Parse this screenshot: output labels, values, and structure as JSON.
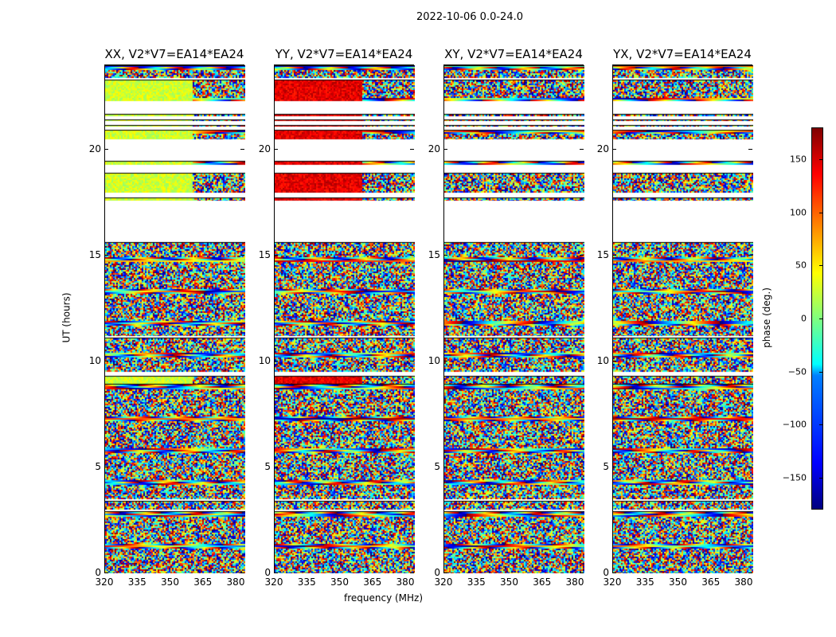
{
  "chart_data": {
    "type": "heatmap",
    "title": "2022-10-06 0.0-24.0",
    "xlabel": "frequency (MHz)",
    "ylabel": "UT (hours)",
    "xlim": [
      320,
      384
    ],
    "ylim": [
      0,
      24
    ],
    "xticks": [
      "320",
      "335",
      "350",
      "365",
      "380"
    ],
    "xtick_values": [
      320,
      335,
      350,
      365,
      380
    ],
    "yticks": [
      "0",
      "5",
      "10",
      "15",
      "20"
    ],
    "ytick_values": [
      0,
      5,
      10,
      15,
      20
    ],
    "panels": [
      {
        "title": "XX, V2*V7=EA14*EA24"
      },
      {
        "title": "YY, V2*V7=EA14*EA24"
      },
      {
        "title": "XY, V2*V7=EA14*EA24"
      },
      {
        "title": "YX, V2*V7=EA14*EA24"
      }
    ],
    "data_time_segments_hours": [
      [
        0,
        2.9
      ],
      [
        3.0,
        3.4
      ],
      [
        3.5,
        8.9
      ],
      [
        8.95,
        9.3
      ],
      [
        9.5,
        11.1
      ],
      [
        11.2,
        15.6
      ],
      [
        17.6,
        17.7
      ],
      [
        18.0,
        18.9
      ],
      [
        19.3,
        19.45
      ],
      [
        20.5,
        20.9
      ],
      [
        21.1,
        21.15
      ],
      [
        21.35,
        21.4
      ],
      [
        21.6,
        21.65
      ],
      [
        22.3,
        23.3
      ],
      [
        23.4,
        24
      ]
    ],
    "colorbar": {
      "label": "phase (deg.)",
      "range": [
        -180,
        180
      ],
      "ticks": [
        "150",
        "100",
        "50",
        "0",
        "−50",
        "−100",
        "−150"
      ],
      "tick_values": [
        150,
        100,
        50,
        0,
        -50,
        -100,
        -150
      ],
      "colormap": "jet"
    }
  }
}
